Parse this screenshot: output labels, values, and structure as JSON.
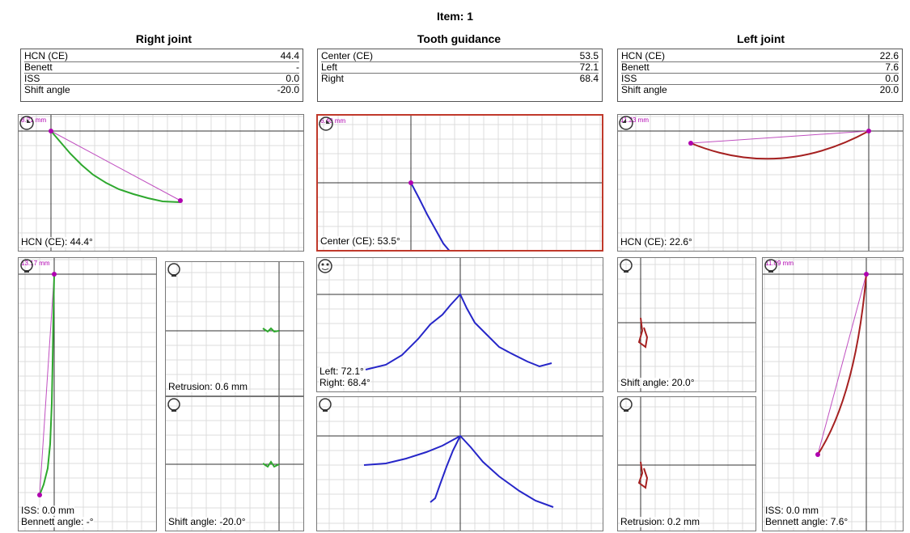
{
  "item_title": "Item: 1",
  "sections": {
    "right_joint": {
      "title": "Right joint",
      "rows": [
        [
          "HCN (CE)",
          "44.4"
        ],
        [
          "Benett",
          "-"
        ],
        [
          "ISS",
          "0.0"
        ],
        [
          "Shift angle",
          "-20.0"
        ]
      ]
    },
    "tooth_guidance": {
      "title": "Tooth guidance",
      "rows": [
        [
          "Center (CE)",
          "53.5"
        ],
        [
          "Left",
          "72.1"
        ],
        [
          "Right",
          "68.4"
        ]
      ]
    },
    "left_joint": {
      "title": "Left joint",
      "rows": [
        [
          "HCN (CE)",
          "22.6"
        ],
        [
          "Benett",
          "7.6"
        ],
        [
          "ISS",
          "0.0"
        ],
        [
          "Shift angle",
          "20.0"
        ]
      ]
    }
  },
  "panels": {
    "right_hcn": {
      "scale": "8.21 mm",
      "label": "HCN (CE): 44.4°"
    },
    "center_ce": {
      "scale": "6.40 mm",
      "label": "Center (CE): 53.5°"
    },
    "left_hcn": {
      "scale": "11.23 mm",
      "label": "HCN (CE): 22.6°"
    },
    "right_iss": {
      "scale": "13.17 mm",
      "label1": "ISS: 0.0 mm",
      "label2": "Bennett angle: -°"
    },
    "right_retrusion": {
      "label": "Retrusion: 0.6 mm"
    },
    "right_shift": {
      "label": "Shift angle: -20.0°"
    },
    "guidance_lr": {
      "label1": "Left: 72.1°",
      "label2": "Right: 68.4°"
    },
    "guidance_combined": {},
    "left_shift": {
      "label": "Shift angle: 20.0°"
    },
    "left_retrusion": {
      "label": "Retrusion: 0.2 mm"
    },
    "left_iss": {
      "scale": "11.09 mm",
      "label1": "ISS: 0.0 mm",
      "label2": "Bennett angle: 7.6°"
    }
  },
  "colors": {
    "right_trace": "#2ea82e",
    "tooth_trace": "#2626c8",
    "left_trace": "#a52020",
    "reference_line": "#c050c0",
    "marker": "#b000b0",
    "highlight_border": "#c0392b"
  },
  "chart_data": [
    {
      "type": "line",
      "title": "HCN (CE): 44.4°",
      "series": [
        {
          "values": [
            44.4
          ]
        }
      ]
    },
    {
      "type": "line",
      "title": "Center (CE): 53.5°",
      "series": [
        {
          "values": [
            53.5
          ]
        }
      ]
    },
    {
      "type": "line",
      "title": "HCN (CE): 22.6°",
      "series": [
        {
          "values": [
            22.6
          ]
        }
      ]
    }
  ]
}
